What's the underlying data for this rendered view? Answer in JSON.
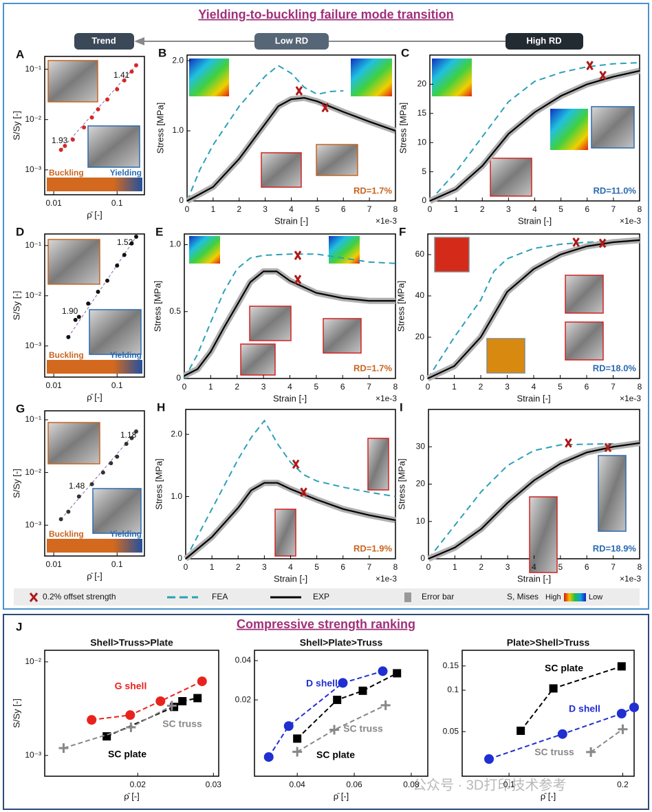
{
  "header": {
    "title": "Yielding-to-buckling failure mode transition",
    "trend": "Trend",
    "low": "Low RD",
    "high": "High RD"
  },
  "legend": {
    "offset": "0.2% offset strength",
    "fea": "FEA",
    "exp": "EXP",
    "error": "Error bar",
    "mises": "S, Mises",
    "high": "High",
    "low": "Low"
  },
  "ranking_title": "Compressive strength ranking",
  "watermark": "公众号 · 3D打印技术参考",
  "chart_data": [
    {
      "type": "scatter",
      "panel": "A",
      "xlabel": "ρ̄ [-]",
      "ylabel": "S/Sy [-]",
      "xlog": true,
      "ylog": true,
      "xlim": [
        0.0072,
        0.27
      ],
      "ylim": [
        0.00032,
        0.18
      ],
      "xticks": [
        0.01,
        0.1
      ],
      "yticks": [
        {
          "value": 0.001,
          "label": "10⁻³"
        },
        {
          "value": 0.01,
          "label": "10⁻²"
        },
        {
          "value": 0.1,
          "label": "10⁻¹"
        }
      ],
      "color": "#d62728",
      "x": [
        0.013,
        0.015,
        0.02,
        0.03,
        0.04,
        0.05,
        0.07,
        0.1,
        0.13,
        0.17,
        0.2
      ],
      "values": [
        0.0025,
        0.003,
        0.004,
        0.007,
        0.011,
        0.016,
        0.025,
        0.04,
        0.06,
        0.09,
        0.12
      ],
      "slope_labels": [
        "1.93",
        "1.41"
      ],
      "mode_labels": [
        "Buckling",
        "Yielding"
      ]
    },
    {
      "type": "line",
      "panel": "B",
      "xlabel": "Strain [-]",
      "ylabel": "Stress [MPa]",
      "x_multiplier": "×1e-3",
      "xlim": [
        0,
        8
      ],
      "ylim": [
        0,
        2.08
      ],
      "xticks": [
        0,
        1,
        2,
        3,
        4,
        5,
        6,
        7,
        8
      ],
      "yticks": [
        0,
        {
          "value": 1,
          "label": "1.0"
        },
        {
          "value": 2,
          "label": "2.0"
        }
      ],
      "annotation": "RD=1.7%",
      "annotation_color": "#c8641e",
      "series": [
        {
          "color": "#2aa0b8",
          "dash": true,
          "x": [
            0,
            0.5,
            1,
            2,
            3,
            3.5,
            4,
            4.5,
            5,
            5.5,
            6
          ],
          "values": [
            0,
            0.45,
            0.8,
            1.35,
            1.78,
            1.93,
            1.82,
            1.62,
            1.52,
            1.56,
            1.57
          ]
        },
        {
          "color": "#000000",
          "dash": false,
          "x": [
            0,
            1,
            2,
            3,
            3.5,
            4,
            4.5,
            5,
            6,
            7,
            8
          ],
          "values": [
            0,
            0.2,
            0.6,
            1.1,
            1.35,
            1.45,
            1.47,
            1.42,
            1.27,
            1.13,
            1.0
          ]
        }
      ],
      "offset_points": {
        "x": [
          4.3,
          5.3
        ],
        "values": [
          1.57,
          1.33
        ]
      }
    },
    {
      "type": "line",
      "panel": "C",
      "xlabel": "Strain [-]",
      "ylabel": "Stress [MPa]",
      "x_multiplier": "×1e-3",
      "xlim": [
        0,
        8
      ],
      "ylim": [
        0,
        25
      ],
      "xticks": [
        0,
        1,
        2,
        3,
        4,
        5,
        6,
        7,
        8
      ],
      "yticks": [
        0,
        5,
        10,
        15,
        20
      ],
      "annotation": "RD=11.0%",
      "annotation_color": "#2a6ab0",
      "series": [
        {
          "color": "#2aa0b8",
          "dash": true,
          "x": [
            0,
            1,
            2,
            3,
            4,
            5,
            6,
            7,
            8
          ],
          "values": [
            0,
            5,
            11,
            17,
            20.5,
            22,
            23,
            23.5,
            23.7
          ]
        },
        {
          "color": "#000000",
          "dash": false,
          "x": [
            0,
            1,
            2,
            3,
            4,
            5,
            6,
            7,
            8
          ],
          "values": [
            0,
            2,
            6,
            11.5,
            15.2,
            18,
            20,
            21.3,
            22.3
          ]
        }
      ],
      "offset_points": {
        "x": [
          6.1,
          6.6
        ],
        "values": [
          23.2,
          21.5
        ]
      }
    },
    {
      "type": "scatter",
      "panel": "D",
      "xlabel": "ρ̄ [-]",
      "ylabel": "S/Sy [-]",
      "xlog": true,
      "ylog": true,
      "xlim": [
        0.0072,
        0.27
      ],
      "ylim": [
        0.00024,
        0.17
      ],
      "xticks": [
        0.01,
        0.1
      ],
      "yticks": [
        {
          "value": 0.001,
          "label": "10⁻³"
        },
        {
          "value": 0.01,
          "label": "10⁻²"
        },
        {
          "value": 0.1,
          "label": "10⁻¹"
        }
      ],
      "color": "#111111",
      "x": [
        0.017,
        0.022,
        0.025,
        0.035,
        0.05,
        0.07,
        0.1,
        0.13,
        0.17,
        0.2
      ],
      "values": [
        0.0015,
        0.0033,
        0.0038,
        0.007,
        0.012,
        0.02,
        0.04,
        0.065,
        0.11,
        0.15
      ],
      "slope_labels": [
        "1.90",
        "1.52"
      ],
      "mode_labels": [
        "Buckling",
        "Yielding"
      ]
    },
    {
      "type": "line",
      "panel": "E",
      "xlabel": "Strain [-]",
      "ylabel": "Stress [MPa]",
      "x_multiplier": "×1e-3",
      "xlim": [
        0,
        8
      ],
      "ylim": [
        0,
        1.08
      ],
      "xticks": [
        0,
        1,
        2,
        3,
        4,
        5,
        6,
        7,
        8
      ],
      "yticks": [
        0,
        0.5,
        {
          "value": 1,
          "label": "1.0"
        }
      ],
      "annotation": "RD=1.7%",
      "annotation_color": "#c8641e",
      "series": [
        {
          "color": "#2aa0b8",
          "dash": true,
          "x": [
            0,
            0.5,
            1,
            1.5,
            2,
            2.5,
            3,
            4,
            5,
            6,
            7,
            8
          ],
          "values": [
            0,
            0.18,
            0.42,
            0.65,
            0.82,
            0.9,
            0.92,
            0.93,
            0.93,
            0.9,
            0.87,
            0.86
          ]
        },
        {
          "color": "#000000",
          "dash": false,
          "x": [
            0,
            0.5,
            1,
            1.5,
            2,
            2.5,
            3,
            3.5,
            4,
            5,
            6,
            7,
            8
          ],
          "values": [
            0.02,
            0.07,
            0.2,
            0.38,
            0.55,
            0.72,
            0.8,
            0.8,
            0.73,
            0.64,
            0.6,
            0.58,
            0.58
          ]
        }
      ],
      "offset_points": {
        "x": [
          4.3,
          4.3
        ],
        "values": [
          0.92,
          0.74
        ]
      }
    },
    {
      "type": "line",
      "panel": "F",
      "xlabel": "Strain [-]",
      "ylabel": "Stress [MPa]",
      "x_multiplier": "×1e-3",
      "xlim": [
        0,
        8
      ],
      "ylim": [
        0,
        70
      ],
      "xticks": [
        0,
        1,
        2,
        3,
        4,
        5,
        6,
        7,
        8
      ],
      "yticks": [
        0,
        20,
        40,
        60
      ],
      "annotation": "RD=18.0%",
      "annotation_color": "#2a6ab0",
      "series": [
        {
          "color": "#2aa0b8",
          "dash": true,
          "x": [
            0,
            1,
            2,
            2.5,
            3,
            4,
            5,
            6,
            7,
            8
          ],
          "values": [
            0,
            20,
            38,
            52,
            58,
            63,
            65,
            66,
            66.5,
            67
          ]
        },
        {
          "color": "#000000",
          "dash": false,
          "x": [
            0,
            1,
            2,
            3,
            4,
            5,
            6,
            7,
            8
          ],
          "values": [
            0,
            6,
            20,
            42,
            53,
            60,
            64,
            66,
            67
          ]
        }
      ],
      "offset_points": {
        "x": [
          5.6,
          6.6
        ],
        "values": [
          66,
          65.5
        ]
      }
    },
    {
      "type": "scatter",
      "panel": "G",
      "xlabel": "ρ̄ [-]",
      "ylabel": "S/Sy [-]",
      "xlog": true,
      "ylog": true,
      "xlim": [
        0.0072,
        0.27
      ],
      "ylim": [
        0.00026,
        0.148
      ],
      "xticks": [
        0.01,
        0.1
      ],
      "yticks": [
        {
          "value": 0.001,
          "label": "10⁻³"
        },
        {
          "value": 0.01,
          "label": "10⁻²"
        },
        {
          "value": 0.1,
          "label": "10⁻¹"
        }
      ],
      "color": "#333333",
      "x": [
        0.013,
        0.017,
        0.025,
        0.04,
        0.06,
        0.08,
        0.1,
        0.14,
        0.17,
        0.2
      ],
      "values": [
        0.0013,
        0.0018,
        0.0035,
        0.006,
        0.01,
        0.015,
        0.02,
        0.035,
        0.045,
        0.06
      ],
      "slope_labels": [
        "1.48",
        "1.18"
      ],
      "mode_labels": [
        "Buckling",
        "Yielding"
      ]
    },
    {
      "type": "line",
      "panel": "H",
      "xlabel": "Strain [-]",
      "ylabel": "Stress [MPa]",
      "x_multiplier": "×1e-3",
      "xlim": [
        0,
        8
      ],
      "ylim": [
        0,
        2.4
      ],
      "xticks": [
        0,
        1,
        2,
        3,
        4,
        5,
        6,
        7,
        8
      ],
      "yticks": [
        0,
        {
          "value": 1,
          "label": "1.0"
        },
        {
          "value": 2,
          "label": "2.0"
        }
      ],
      "annotation": "RD=1.9%",
      "annotation_color": "#c8641e",
      "series": [
        {
          "color": "#2aa0b8",
          "dash": true,
          "x": [
            0,
            1,
            2,
            2.5,
            3,
            3.5,
            4,
            4.5,
            5,
            6,
            7,
            8
          ],
          "values": [
            0,
            0.8,
            1.6,
            1.95,
            2.22,
            1.85,
            1.55,
            1.35,
            1.25,
            1.15,
            1.07,
            1.0
          ]
        },
        {
          "color": "#000000",
          "dash": false,
          "x": [
            0,
            1,
            2,
            2.5,
            3,
            3.5,
            4,
            5,
            6,
            7,
            8
          ],
          "values": [
            0,
            0.35,
            0.82,
            1.1,
            1.22,
            1.22,
            1.12,
            0.95,
            0.8,
            0.7,
            0.62
          ]
        }
      ],
      "offset_points": {
        "x": [
          4.2,
          4.5
        ],
        "values": [
          1.52,
          1.07
        ]
      }
    },
    {
      "type": "line",
      "panel": "I",
      "xlabel": "Strain [-]",
      "ylabel": "Stress [MPa]",
      "x_multiplier": "×1e-3",
      "xlim": [
        0,
        8
      ],
      "ylim": [
        0,
        40
      ],
      "xticks": [
        0,
        1,
        2,
        3,
        4,
        5,
        6,
        7,
        8
      ],
      "yticks": [
        0,
        10,
        20,
        30
      ],
      "annotation": "RD=18.9%",
      "annotation_color": "#2a6ab0",
      "series": [
        {
          "color": "#2aa0b8",
          "dash": true,
          "x": [
            0,
            1,
            2,
            3,
            4,
            5,
            6,
            8
          ],
          "values": [
            0,
            9,
            18,
            25,
            29,
            30.5,
            30.7,
            30.9
          ]
        },
        {
          "color": "#000000",
          "dash": false,
          "x": [
            0,
            1,
            2,
            3,
            4,
            5,
            6,
            7,
            8
          ],
          "values": [
            0,
            3,
            8,
            15,
            21,
            25.5,
            28.5,
            30,
            31
          ]
        }
      ],
      "offset_points": {
        "x": [
          5.3,
          6.8
        ],
        "values": [
          31,
          29.8
        ]
      }
    },
    {
      "type": "ranking",
      "panel": "J",
      "title": "Shell>Truss>Plate",
      "xlabel": "ρ̄ [-]",
      "ylabel": "S/Sy [-]",
      "ylog": true,
      "xlim": [
        0.0077,
        0.0307
      ],
      "ylim": [
        0.0006,
        0.0133
      ],
      "xticks": [
        0.02,
        0.03
      ],
      "yticks": [
        {
          "value": 0.001,
          "label": "10⁻³"
        },
        {
          "value": 0.01,
          "label": "10⁻²"
        }
      ],
      "series": [
        {
          "name": "G shell",
          "color": "#e8231e",
          "marker": "circle",
          "x": [
            0.0139,
            0.019,
            0.023,
            0.0285
          ],
          "values": [
            0.0024,
            0.0027,
            0.0038,
            0.0062
          ]
        },
        {
          "name": "SC plate",
          "color": "#000000",
          "marker": "square",
          "x": [
            0.0159,
            0.0248,
            0.0259,
            0.0279
          ],
          "values": [
            0.0016,
            0.0033,
            0.0038,
            0.0041
          ]
        },
        {
          "name": "SC truss",
          "color": "#888888",
          "marker": "plus",
          "x": [
            0.0102,
            0.0191,
            0.0245
          ],
          "values": [
            0.0012,
            0.002,
            0.0034
          ]
        }
      ]
    },
    {
      "type": "ranking",
      "title": "Shell>Plate>Truss",
      "xlabel": "ρ̄ [-]",
      "ylog": true,
      "xlim": [
        0.025,
        0.0858
      ],
      "ylim": [
        0.0052,
        0.048
      ],
      "xticks": [
        0.04,
        0.06,
        0.08
      ],
      "yticks": [
        0.02,
        0.04
      ],
      "series": [
        {
          "name": "D shell",
          "color": "#1f2fd0",
          "marker": "circle",
          "x": [
            0.03,
            0.037,
            0.056,
            0.07
          ],
          "values": [
            0.0073,
            0.0126,
            0.027,
            0.0332
          ]
        },
        {
          "name": "SC plate",
          "color": "#000000",
          "marker": "square",
          "x": [
            0.04,
            0.054,
            0.063,
            0.075
          ],
          "values": [
            0.0101,
            0.02,
            0.0235,
            0.032
          ]
        },
        {
          "name": "SC truss",
          "color": "#888888",
          "marker": "plus",
          "x": [
            0.04,
            0.053,
            0.071
          ],
          "values": [
            0.008,
            0.0118,
            0.0182
          ]
        }
      ]
    },
    {
      "type": "ranking",
      "title": "Plate>Shell>Truss",
      "xlabel": "ρ̄ [-]",
      "ylog": true,
      "xlim": [
        0.0588,
        0.21
      ],
      "ylim": [
        0.0237,
        0.195
      ],
      "xticks": [
        0.1,
        0.2
      ],
      "yticks": [
        0.05,
        0.1,
        0.15
      ],
      "series": [
        {
          "name": "SC plate",
          "color": "#000000",
          "marker": "square",
          "x": [
            0.1103,
            0.139,
            0.199
          ],
          "values": [
            0.0507,
            0.103,
            0.149
          ]
        },
        {
          "name": "D shell",
          "color": "#1f2fd0",
          "marker": "circle",
          "x": [
            0.0824,
            0.147,
            0.199,
            0.21
          ],
          "values": [
            0.0316,
            0.048,
            0.0676,
            0.075
          ]
        },
        {
          "name": "SC truss",
          "color": "#888888",
          "marker": "plus",
          "x": [
            0.172,
            0.2
          ],
          "values": [
            0.0355,
            0.052
          ]
        }
      ]
    }
  ]
}
